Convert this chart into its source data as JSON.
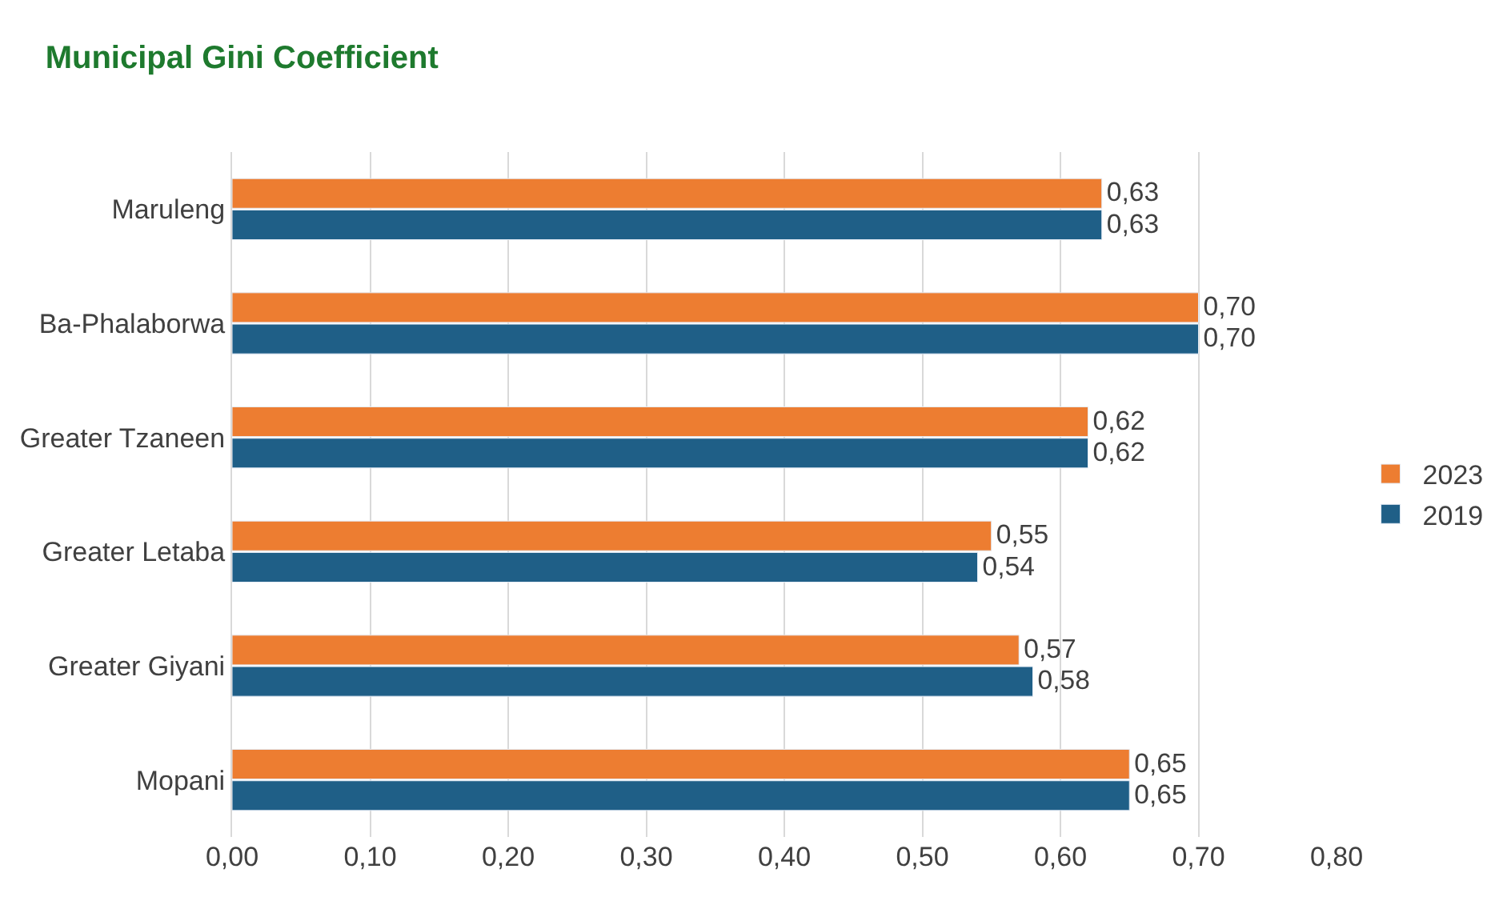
{
  "chart_data": {
    "type": "bar",
    "orientation": "horizontal",
    "title": "Municipal Gini Coefficient",
    "categories": [
      "Maruleng",
      "Ba-Phalaborwa",
      "Greater Tzaneen",
      "Greater Letaba",
      "Greater Giyani",
      "Mopani"
    ],
    "series": [
      {
        "name": "2023",
        "color": "#ed7d31",
        "values": [
          0.63,
          0.7,
          0.62,
          0.55,
          0.57,
          0.65
        ],
        "value_labels": [
          "0,63",
          "0,70",
          "0,62",
          "0,55",
          "0,57",
          "0,65"
        ]
      },
      {
        "name": "2019",
        "color": "#1f5f87",
        "values": [
          0.63,
          0.7,
          0.62,
          0.54,
          0.58,
          0.65
        ],
        "value_labels": [
          "0,63",
          "0,70",
          "0,62",
          "0,54",
          "0,58",
          "0,65"
        ]
      }
    ],
    "xlim": [
      0,
      0.8
    ],
    "xticks": [
      {
        "value": 0,
        "label": "0,00"
      },
      {
        "value": 0.1,
        "label": "0,10"
      },
      {
        "value": 0.2,
        "label": "0,20"
      },
      {
        "value": 0.3,
        "label": "0,30"
      },
      {
        "value": 0.4,
        "label": "0,40"
      },
      {
        "value": 0.5,
        "label": "0,50"
      },
      {
        "value": 0.6,
        "label": "0,60"
      },
      {
        "value": 0.7,
        "label": "0,70"
      },
      {
        "value": 0.8,
        "label": "0,80"
      }
    ],
    "grid": "x",
    "legend": "right"
  }
}
